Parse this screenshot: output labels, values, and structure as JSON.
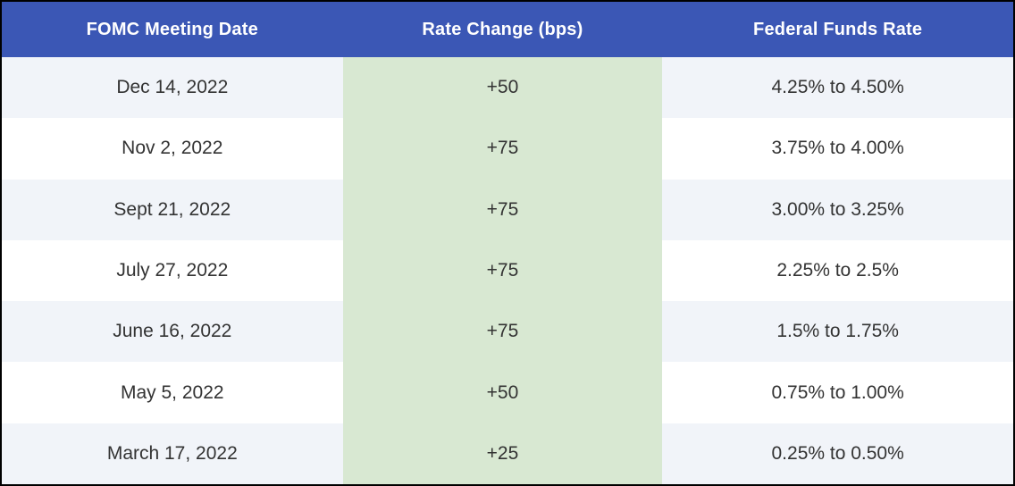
{
  "chart_data": {
    "type": "table",
    "columns": [
      "FOMC Meeting Date",
      "Rate Change (bps)",
      "Federal Funds Rate"
    ],
    "rows": [
      [
        "Dec 14, 2022",
        "+50",
        "4.25% to 4.50%"
      ],
      [
        "Nov 2, 2022",
        "+75",
        "3.75% to 4.00%"
      ],
      [
        "Sept 21, 2022",
        "+75",
        "3.00% to 3.25%"
      ],
      [
        "July 27, 2022",
        "+75",
        "2.25% to 2.5%"
      ],
      [
        "June 16, 2022",
        "+75",
        "1.5% to 1.75%"
      ],
      [
        "May 5, 2022",
        "+50",
        "0.75% to 1.00%"
      ],
      [
        "March 17, 2022",
        "+25",
        "0.25% to 0.50%"
      ]
    ],
    "rate_change_values_bps": [
      50,
      75,
      75,
      75,
      75,
      50,
      25
    ],
    "layout": {
      "header_position": "top",
      "zebra_striping": true,
      "highlighted_column": "Rate Change (bps)"
    }
  },
  "colors": {
    "header_bg": "#3b57b5",
    "header_text": "#ffffff",
    "rate_change_col_bg": "#d8e8d2",
    "row_alt_bg": "#f1f4f9",
    "row_bg": "#ffffff",
    "cell_text": "#333333",
    "border": "#000000"
  }
}
